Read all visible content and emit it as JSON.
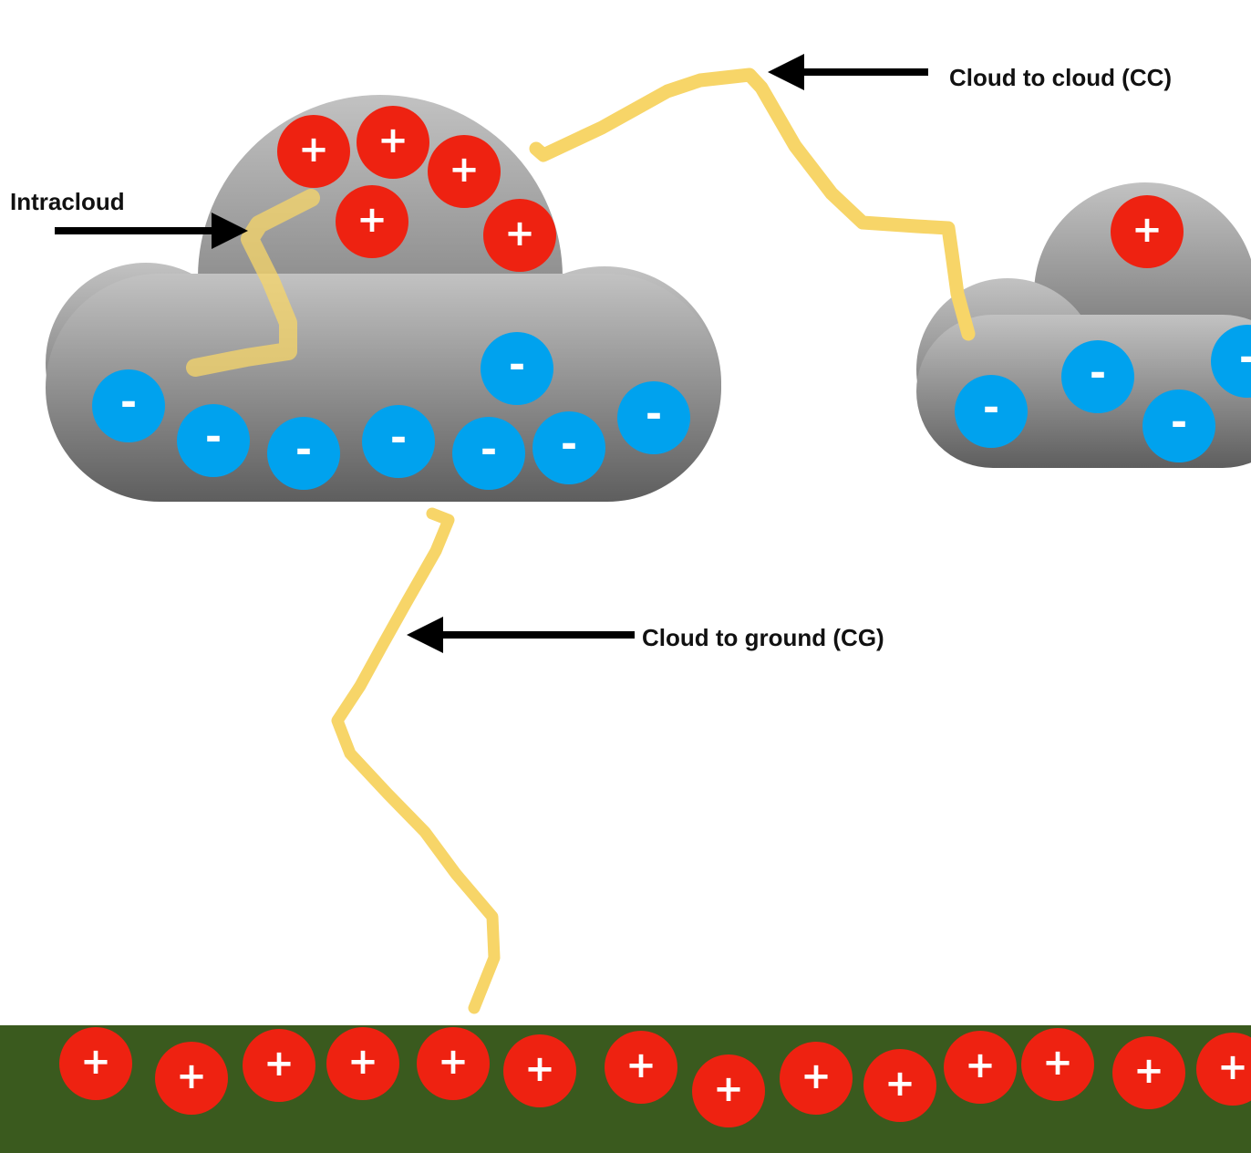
{
  "labels": {
    "intracloud": "Intracloud",
    "cloud_to_cloud": "Cloud to cloud (CC)",
    "cloud_to_ground": "Cloud to ground (CG)"
  },
  "symbols": {
    "positive": "+",
    "negative": "-"
  },
  "colors": {
    "positive_charge": "#ee2211",
    "negative_charge": "#00a2ee",
    "lightning": "#f7d568",
    "ground": "#3a5a1e",
    "cloud_top": "#c2c2c2",
    "cloud_bottom": "#5e5e5e",
    "arrow": "#000000"
  },
  "icons": {
    "arrow": "arrow-left-icon",
    "charge_positive": "plus-charge-icon",
    "charge_negative": "minus-charge-icon"
  }
}
